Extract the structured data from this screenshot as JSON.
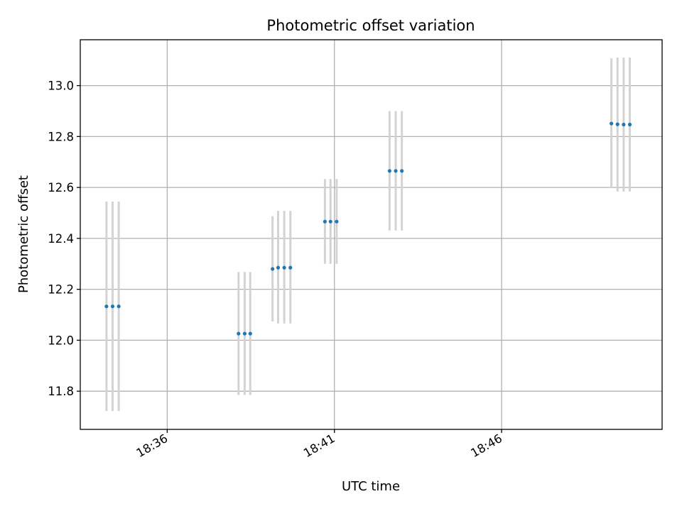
{
  "chart_data": {
    "type": "scatter",
    "title": "Photometric offset variation",
    "xlabel": "UTC time",
    "ylabel": "Photometric offset",
    "x_axis": {
      "type": "time",
      "min": "18:33:24",
      "max": "18:50:48",
      "ticks": [
        "18:36",
        "18:41",
        "18:46"
      ]
    },
    "y_axis": {
      "min": 11.65,
      "max": 13.18,
      "ticks": [
        "11.8",
        "12.0",
        "12.2",
        "12.4",
        "12.6",
        "12.8",
        "13.0"
      ]
    },
    "grid": true,
    "colors": {
      "points": "#1f77b4",
      "error_bars": "#d3d3d3"
    },
    "points": [
      {
        "x": "18:34:11",
        "y": 12.133,
        "ylow": 11.722,
        "yhigh": 12.545
      },
      {
        "x": "18:34:22",
        "y": 12.133,
        "ylow": 11.722,
        "yhigh": 12.545
      },
      {
        "x": "18:34:33",
        "y": 12.133,
        "ylow": 11.722,
        "yhigh": 12.545
      },
      {
        "x": "18:38:08",
        "y": 12.026,
        "ylow": 11.785,
        "yhigh": 12.268
      },
      {
        "x": "18:38:19",
        "y": 12.026,
        "ylow": 11.785,
        "yhigh": 12.268
      },
      {
        "x": "18:38:29",
        "y": 12.026,
        "ylow": 11.785,
        "yhigh": 12.268
      },
      {
        "x": "18:39:09",
        "y": 12.28,
        "ylow": 12.074,
        "yhigh": 12.487
      },
      {
        "x": "18:39:19",
        "y": 12.285,
        "ylow": 12.066,
        "yhigh": 12.508
      },
      {
        "x": "18:39:30",
        "y": 12.285,
        "ylow": 12.066,
        "yhigh": 12.508
      },
      {
        "x": "18:39:41",
        "y": 12.285,
        "ylow": 12.066,
        "yhigh": 12.508
      },
      {
        "x": "18:40:43",
        "y": 12.466,
        "ylow": 12.3,
        "yhigh": 12.633
      },
      {
        "x": "18:40:53",
        "y": 12.466,
        "ylow": 12.3,
        "yhigh": 12.633
      },
      {
        "x": "18:41:04",
        "y": 12.466,
        "ylow": 12.3,
        "yhigh": 12.633
      },
      {
        "x": "18:42:39",
        "y": 12.665,
        "ylow": 12.431,
        "yhigh": 12.9
      },
      {
        "x": "18:42:50",
        "y": 12.665,
        "ylow": 12.431,
        "yhigh": 12.9
      },
      {
        "x": "18:43:01",
        "y": 12.665,
        "ylow": 12.431,
        "yhigh": 12.9
      },
      {
        "x": "18:49:17",
        "y": 12.851,
        "ylow": 12.597,
        "yhigh": 13.107
      },
      {
        "x": "18:49:28",
        "y": 12.848,
        "ylow": 12.584,
        "yhigh": 13.11
      },
      {
        "x": "18:49:39",
        "y": 12.847,
        "ylow": 12.584,
        "yhigh": 13.11
      },
      {
        "x": "18:49:50",
        "y": 12.847,
        "ylow": 12.584,
        "yhigh": 13.11
      }
    ]
  }
}
